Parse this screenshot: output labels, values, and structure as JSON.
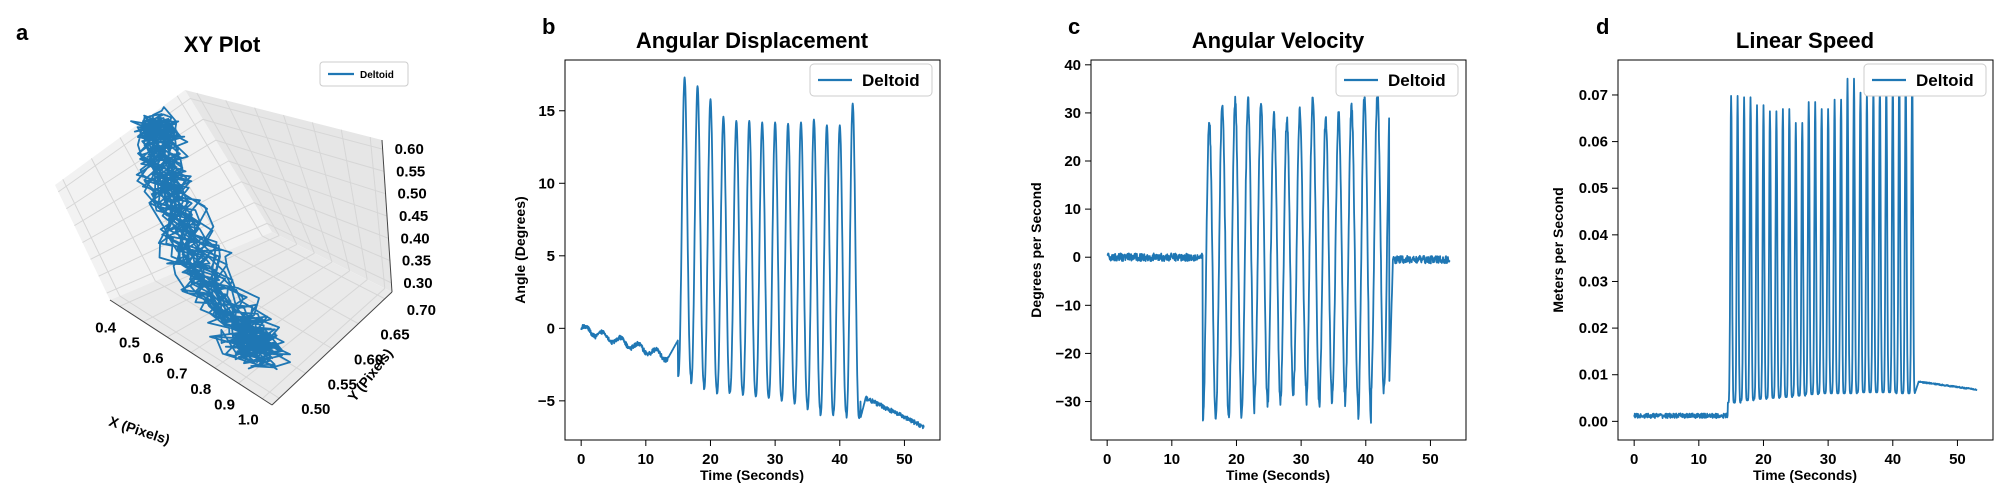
{
  "colors": {
    "series": "#1f77b4",
    "pane_left": "#f2f2f2",
    "pane_right": "#e6e6e6",
    "pane_floor": "#eaeaea",
    "grid": "#d6d6d6"
  },
  "panels": [
    {
      "letter": "a",
      "title": "XY Plot"
    },
    {
      "letter": "b",
      "title": "Angular Displacement"
    },
    {
      "letter": "c",
      "title": "Angular Velocity"
    },
    {
      "letter": "d",
      "title": "Linear Speed"
    }
  ],
  "chart_data": [
    {
      "type": "line3d",
      "title": "XY Plot",
      "xlabel": "X (Pixels)",
      "ylabel": "Y (Pixels)",
      "legend": [
        "Deltoid"
      ],
      "legend_position": "top-right",
      "x_ticks": [
        "0.4",
        "0.5",
        "0.6",
        "0.7",
        "0.8",
        "0.9",
        "1.0"
      ],
      "y_ticks": [
        "0.50",
        "0.55",
        "0.60",
        "0.65",
        "0.70"
      ],
      "z_ticks": [
        "0.30",
        "0.35",
        "0.40",
        "0.45",
        "0.50",
        "0.55",
        "0.60"
      ],
      "xlim": [
        0.37,
        1.02
      ],
      "ylim": [
        0.47,
        0.72
      ],
      "zlim": [
        0.28,
        0.63
      ]
    },
    {
      "type": "line",
      "title": "Angular Displacement",
      "xlabel": "Time (Seconds)",
      "ylabel": "Angle (Degrees)",
      "series": [
        {
          "name": "Deltoid"
        }
      ],
      "legend_position": "top-right",
      "x_ticks": [
        "0",
        "10",
        "20",
        "30",
        "40",
        "50"
      ],
      "y_ticks": [
        "−5",
        "0",
        "5",
        "10",
        "15"
      ],
      "xlim": [
        -2.5,
        55.5
      ],
      "ylim": [
        -7.7,
        18.5
      ],
      "pre": {
        "t_end": 13.5,
        "start": 0.0,
        "end": -2.0
      },
      "osc": {
        "t_start": 15.0,
        "t_end": 43.2,
        "period": 2.0,
        "peaks": [
          17.3,
          16.7,
          15.8,
          14.6,
          14.3,
          14.3,
          14.2,
          14.2,
          14.1,
          14.2,
          14.4,
          14.0,
          14.0,
          15.5
        ],
        "troughs": [
          -3.3,
          -3.8,
          -4.2,
          -4.5,
          -4.4,
          -4.6,
          -4.7,
          -4.8,
          -5.0,
          -5.2,
          -5.6,
          -6.0,
          -5.8,
          -6.2
        ]
      },
      "post": {
        "t_start": 44.0,
        "start": -4.8,
        "end": -6.8,
        "t_end": 53.0
      }
    },
    {
      "type": "line",
      "title": "Angular Velocity",
      "xlabel": "Time (Seconds)",
      "ylabel": "Degrees per Second",
      "series": [
        {
          "name": "Deltoid"
        }
      ],
      "legend_position": "top-right",
      "x_ticks": [
        "0",
        "10",
        "20",
        "30",
        "40",
        "50"
      ],
      "y_ticks": [
        "−30",
        "−20",
        "−10",
        "0",
        "10",
        "20",
        "30",
        "40"
      ],
      "xlim": [
        -2.5,
        55.5
      ],
      "ylim": [
        -38,
        41
      ],
      "pre": {
        "t_end": 14.5,
        "level": 0.0,
        "noise": 0.8
      },
      "osc": {
        "t_start": 14.8,
        "t_end": 43.6,
        "period": 2.0,
        "peaks": [
          28,
          32,
          32.5,
          32.5,
          31.8,
          29.5,
          28.5,
          30.5,
          33,
          29,
          29.5,
          31.5,
          33.5,
          34
        ],
        "troughs": [
          -34,
          -33.5,
          -33,
          -32,
          -29.5,
          -30.5,
          -30,
          -28,
          -30,
          -30.5,
          -29,
          -30,
          -33.5,
          -28
        ]
      },
      "post": {
        "t_start": 44.2,
        "t_end": 53.0,
        "level": -0.5,
        "noise": 0.8
      }
    },
    {
      "type": "line",
      "title": "Linear Speed",
      "xlabel": "Time (Seconds)",
      "ylabel": "Meters per Second",
      "series": [
        {
          "name": "Deltoid"
        }
      ],
      "legend_position": "top-right",
      "x_ticks": [
        "0",
        "10",
        "20",
        "30",
        "40",
        "50"
      ],
      "y_ticks": [
        "0.00",
        "0.01",
        "0.02",
        "0.03",
        "0.04",
        "0.05",
        "0.06",
        "0.07"
      ],
      "xlim": [
        -2.5,
        55.5
      ],
      "ylim": [
        -0.004,
        0.0775
      ],
      "pre": {
        "t_end": 13.8,
        "level": 0.0012,
        "noise": 0.0005
      },
      "osc": {
        "t_start": 14.5,
        "t_end": 43.4,
        "period": 2.0,
        "peaks": [
          0.0698,
          0.0695,
          0.0678,
          0.0665,
          0.067,
          0.064,
          0.0685,
          0.067,
          0.069,
          0.0735,
          0.0705,
          0.072,
          0.073,
          0.0745
        ],
        "troughs": [
          0.004,
          0.0045,
          0.0048,
          0.005,
          0.0052,
          0.0055,
          0.0058,
          0.006,
          0.006,
          0.006,
          0.0062,
          0.0062,
          0.0062,
          0.006
        ]
      },
      "post": {
        "t_start": 44.0,
        "t_end": 53.0,
        "start": 0.0085,
        "end": 0.0068
      }
    }
  ]
}
